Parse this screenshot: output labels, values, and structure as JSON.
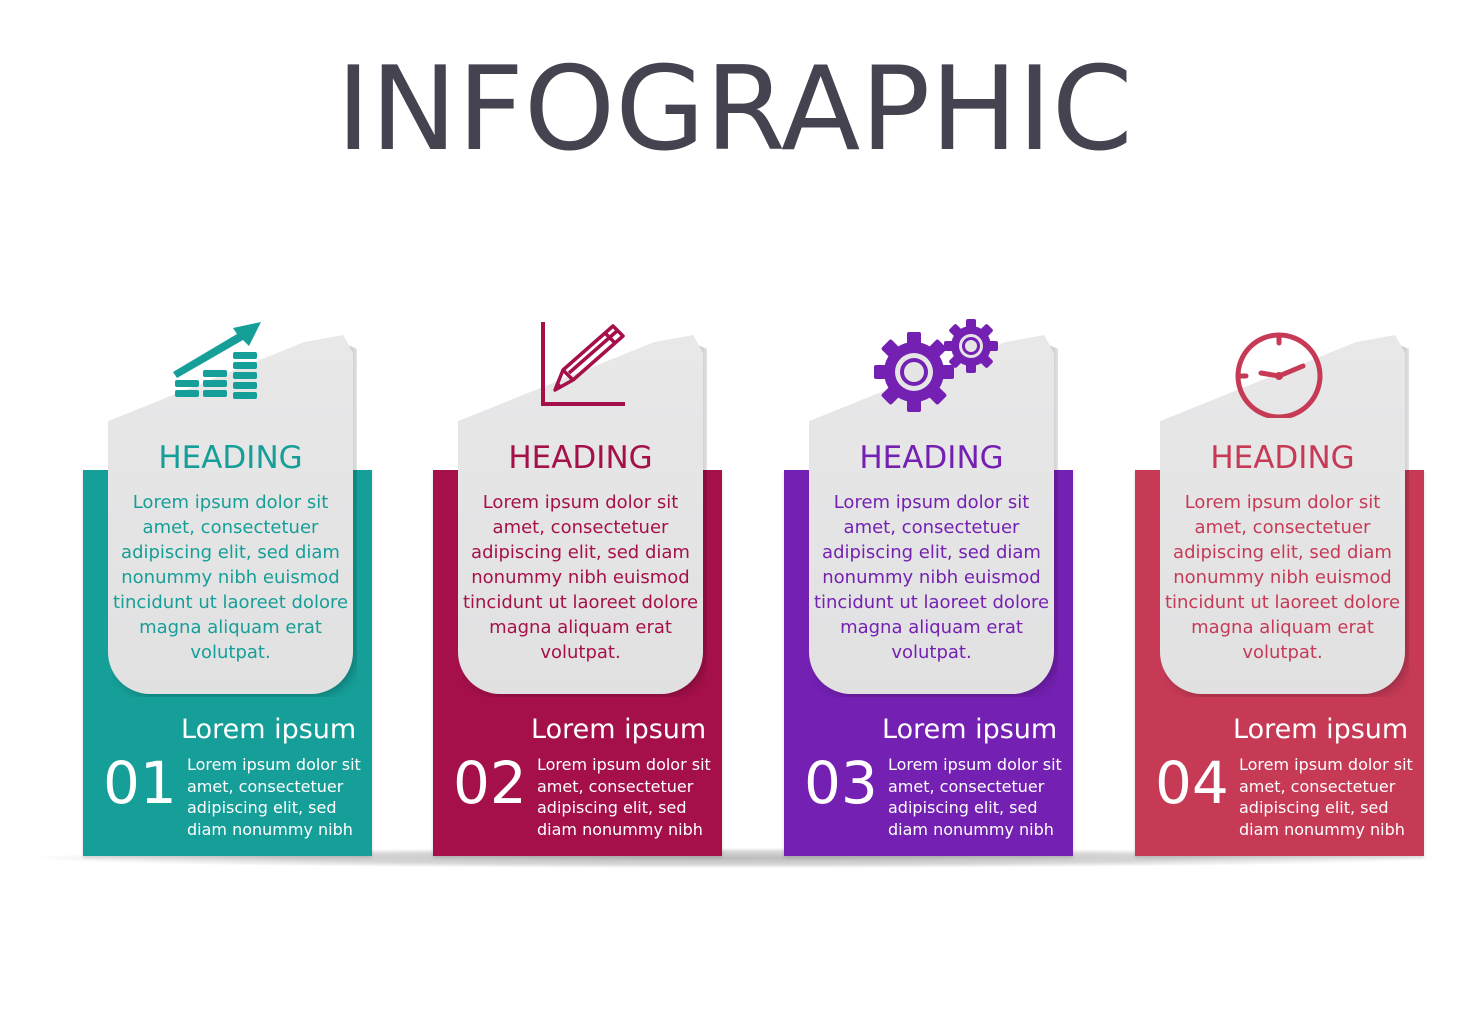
{
  "title": "INFOGRAPHIC",
  "cards": [
    {
      "icon": "growth-chart-icon",
      "color": "#169e98",
      "heading": "HEADING",
      "body": "Lorem ipsum dolor sit amet, consectetuer adipiscing elit, sed diam nonummy nibh euismod tincidunt ut laoreet dolore magna aliquam erat volutpat.",
      "number": "01",
      "subtitle": "Lorem ipsum",
      "description": "Lorem ipsum dolor sit amet, consectetuer adipiscing elit, sed diam nonummy nibh"
    },
    {
      "icon": "pencil-chart-icon",
      "color": "#a5104a",
      "heading": "HEADING",
      "body": "Lorem ipsum dolor sit amet, consectetuer adipiscing elit, sed diam nonummy nibh euismod tincidunt ut laoreet dolore magna aliquam erat volutpat.",
      "number": "02",
      "subtitle": "Lorem ipsum",
      "description": "Lorem ipsum dolor sit amet, consectetuer adipiscing elit, sed diam nonummy nibh"
    },
    {
      "icon": "gears-icon",
      "color": "#7420b2",
      "heading": "HEADING",
      "body": "Lorem ipsum dolor sit amet, consectetuer adipiscing elit, sed diam nonummy nibh euismod tincidunt ut laoreet dolore magna aliquam erat volutpat.",
      "number": "03",
      "subtitle": "Lorem ipsum",
      "description": "Lorem ipsum dolor sit amet, consectetuer adipiscing elit, sed diam nonummy nibh"
    },
    {
      "icon": "clock-icon",
      "color": "#c63a56",
      "heading": "HEADING",
      "body": "Lorem ipsum dolor sit amet, consectetuer adipiscing elit, sed diam nonummy nibh euismod tincidunt ut laoreet dolore magna aliquam erat volutpat.",
      "number": "04",
      "subtitle": "Lorem ipsum",
      "description": "Lorem ipsum dolor sit amet, consectetuer adipiscing elit, sed diam nonummy nibh"
    }
  ]
}
